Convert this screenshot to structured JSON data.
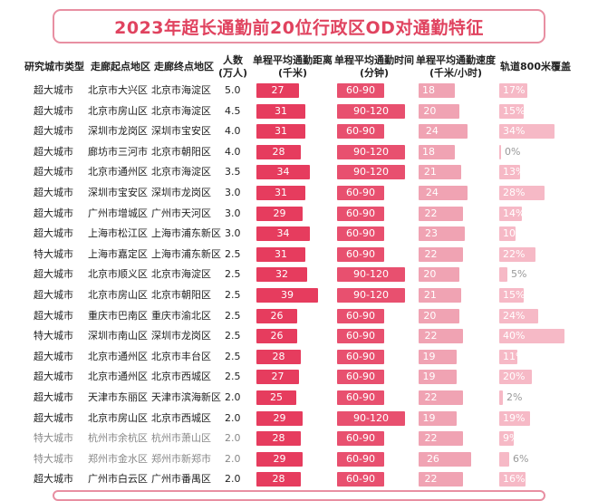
{
  "title": "2023年超长通勤前20位行政区OD对通勤特征",
  "headers": {
    "type": "研究城市类型",
    "start": "走廊起点地区",
    "end": "走廊终点地区",
    "people": [
      "人数",
      "(万人)"
    ],
    "dist": [
      "单程平均通勤距离",
      "(千米)"
    ],
    "time": [
      "单程平均通勤时间",
      "(分钟)"
    ],
    "speed": [
      "单程平均通勤速度",
      "(千米/小时)"
    ],
    "cover": "轨道800米覆盖"
  },
  "chart_data": {
    "type": "table",
    "title": "2023年超长通勤前20位行政区OD对通勤特征",
    "columns": [
      "研究城市类型",
      "走廊起点地区",
      "走廊终点地区",
      "人数(万人)",
      "单程平均通勤距离(千米)",
      "单程平均通勤时间(分钟)",
      "单程平均通勤速度(千米/小时)",
      "轨道800米覆盖"
    ],
    "rows": [
      {
        "type": "超大城市",
        "start": "北京市大兴区",
        "end": "北京市海淀区",
        "people": "5.0",
        "dist": 27,
        "time": "60-90",
        "speed": 18,
        "cover": "17%",
        "cover_val": 17
      },
      {
        "type": "超大城市",
        "start": "北京市房山区",
        "end": "北京市海淀区",
        "people": "4.5",
        "dist": 31,
        "time": "90-120",
        "speed": 20,
        "cover": "15%",
        "cover_val": 15
      },
      {
        "type": "超大城市",
        "start": "深圳市龙岗区",
        "end": "深圳市宝安区",
        "people": "4.0",
        "dist": 31,
        "time": "60-90",
        "speed": 24,
        "cover": "34%",
        "cover_val": 34
      },
      {
        "type": "超大城市",
        "start": "廊坊市三河市",
        "end": "北京市朝阳区",
        "people": "4.0",
        "dist": 28,
        "time": "90-120",
        "speed": 18,
        "cover": "0%",
        "cover_val": 0
      },
      {
        "type": "超大城市",
        "start": "北京市通州区",
        "end": "北京市海淀区",
        "people": "3.5",
        "dist": 34,
        "time": "90-120",
        "speed": 21,
        "cover": "13%",
        "cover_val": 13
      },
      {
        "type": "超大城市",
        "start": "深圳市宝安区",
        "end": "深圳市龙岗区",
        "people": "3.0",
        "dist": 31,
        "time": "60-90",
        "speed": 24,
        "cover": "28%",
        "cover_val": 28
      },
      {
        "type": "超大城市",
        "start": "广州市增城区",
        "end": "广州市天河区",
        "people": "3.0",
        "dist": 29,
        "time": "60-90",
        "speed": 22,
        "cover": "14%",
        "cover_val": 14
      },
      {
        "type": "超大城市",
        "start": "上海市松江区",
        "end": "上海市浦东新区",
        "people": "3.0",
        "dist": 34,
        "time": "60-90",
        "speed": 23,
        "cover": "10%",
        "cover_val": 10
      },
      {
        "type": "特大城市",
        "start": "上海市嘉定区",
        "end": "上海市浦东新区",
        "people": "2.5",
        "dist": 31,
        "time": "60-90",
        "speed": 22,
        "cover": "22%",
        "cover_val": 22
      },
      {
        "type": "超大城市",
        "start": "北京市顺义区",
        "end": "北京市海淀区",
        "people": "2.5",
        "dist": 32,
        "time": "90-120",
        "speed": 20,
        "cover": "5%",
        "cover_val": 5
      },
      {
        "type": "超大城市",
        "start": "北京市房山区",
        "end": "北京市朝阳区",
        "people": "2.5",
        "dist": 39,
        "time": "90-120",
        "speed": 21,
        "cover": "15%",
        "cover_val": 15
      },
      {
        "type": "超大城市",
        "start": "重庆市巴南区",
        "end": "重庆市渝北区",
        "people": "2.5",
        "dist": 26,
        "time": "60-90",
        "speed": 20,
        "cover": "24%",
        "cover_val": 24
      },
      {
        "type": "特大城市",
        "start": "深圳市南山区",
        "end": "深圳市龙岗区",
        "people": "2.5",
        "dist": 26,
        "time": "60-90",
        "speed": 22,
        "cover": "40%",
        "cover_val": 40
      },
      {
        "type": "超大城市",
        "start": "北京市通州区",
        "end": "北京市丰台区",
        "people": "2.5",
        "dist": 28,
        "time": "60-90",
        "speed": 19,
        "cover": "11%",
        "cover_val": 11
      },
      {
        "type": "超大城市",
        "start": "北京市通州区",
        "end": "北京市西城区",
        "people": "2.5",
        "dist": 27,
        "time": "60-90",
        "speed": 19,
        "cover": "20%",
        "cover_val": 20
      },
      {
        "type": "超大城市",
        "start": "天津市东丽区",
        "end": "天津市滨海新区",
        "people": "2.0",
        "dist": 25,
        "time": "60-90",
        "speed": 22,
        "cover": "2%",
        "cover_val": 2
      },
      {
        "type": "超大城市",
        "start": "北京市房山区",
        "end": "北京市西城区",
        "people": "2.0",
        "dist": 29,
        "time": "90-120",
        "speed": 19,
        "cover": "19%",
        "cover_val": 19
      },
      {
        "type": "特大城市",
        "start": "杭州市余杭区",
        "end": "杭州市萧山区",
        "people": "2.0",
        "dist": 28,
        "time": "60-90",
        "speed": 22,
        "cover": "9%",
        "cover_val": 9,
        "faded": true
      },
      {
        "type": "特大城市",
        "start": "郑州市金水区",
        "end": "郑州市新郑市",
        "people": "2.0",
        "dist": 29,
        "time": "60-90",
        "speed": 26,
        "cover": "6%",
        "cover_val": 6,
        "faded": true
      },
      {
        "type": "超大城市",
        "start": "广州市白云区",
        "end": "广州市番禺区",
        "people": "2.0",
        "dist": 28,
        "time": "60-90",
        "speed": 22,
        "cover": "16%",
        "cover_val": 16
      }
    ]
  }
}
